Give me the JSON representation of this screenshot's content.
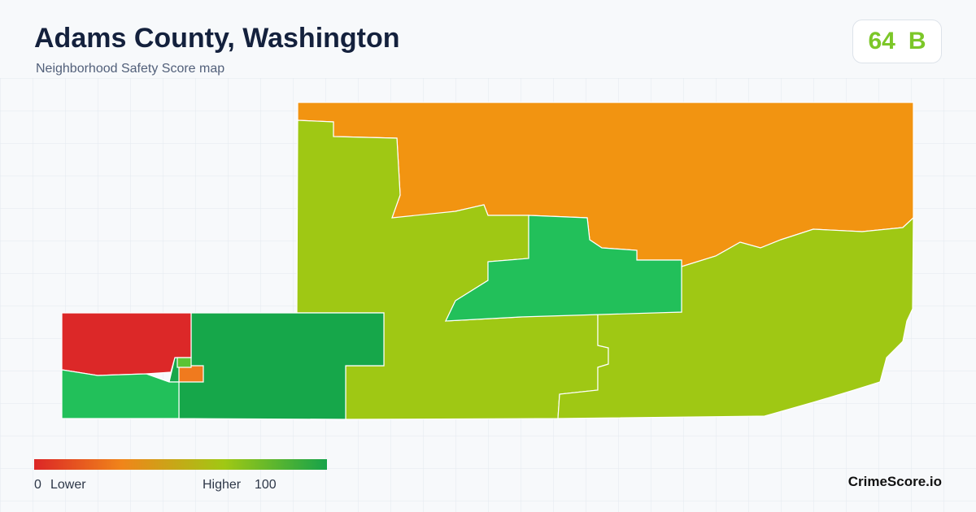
{
  "header": {
    "title": "Adams County, Washington",
    "subtitle": "Neighborhood Safety Score map"
  },
  "score": {
    "value": 64,
    "grade": "B"
  },
  "legend": {
    "min": 0,
    "min_label": "Lower",
    "max_label": "Higher",
    "max": 100
  },
  "brand": "CrimeScore.io"
}
